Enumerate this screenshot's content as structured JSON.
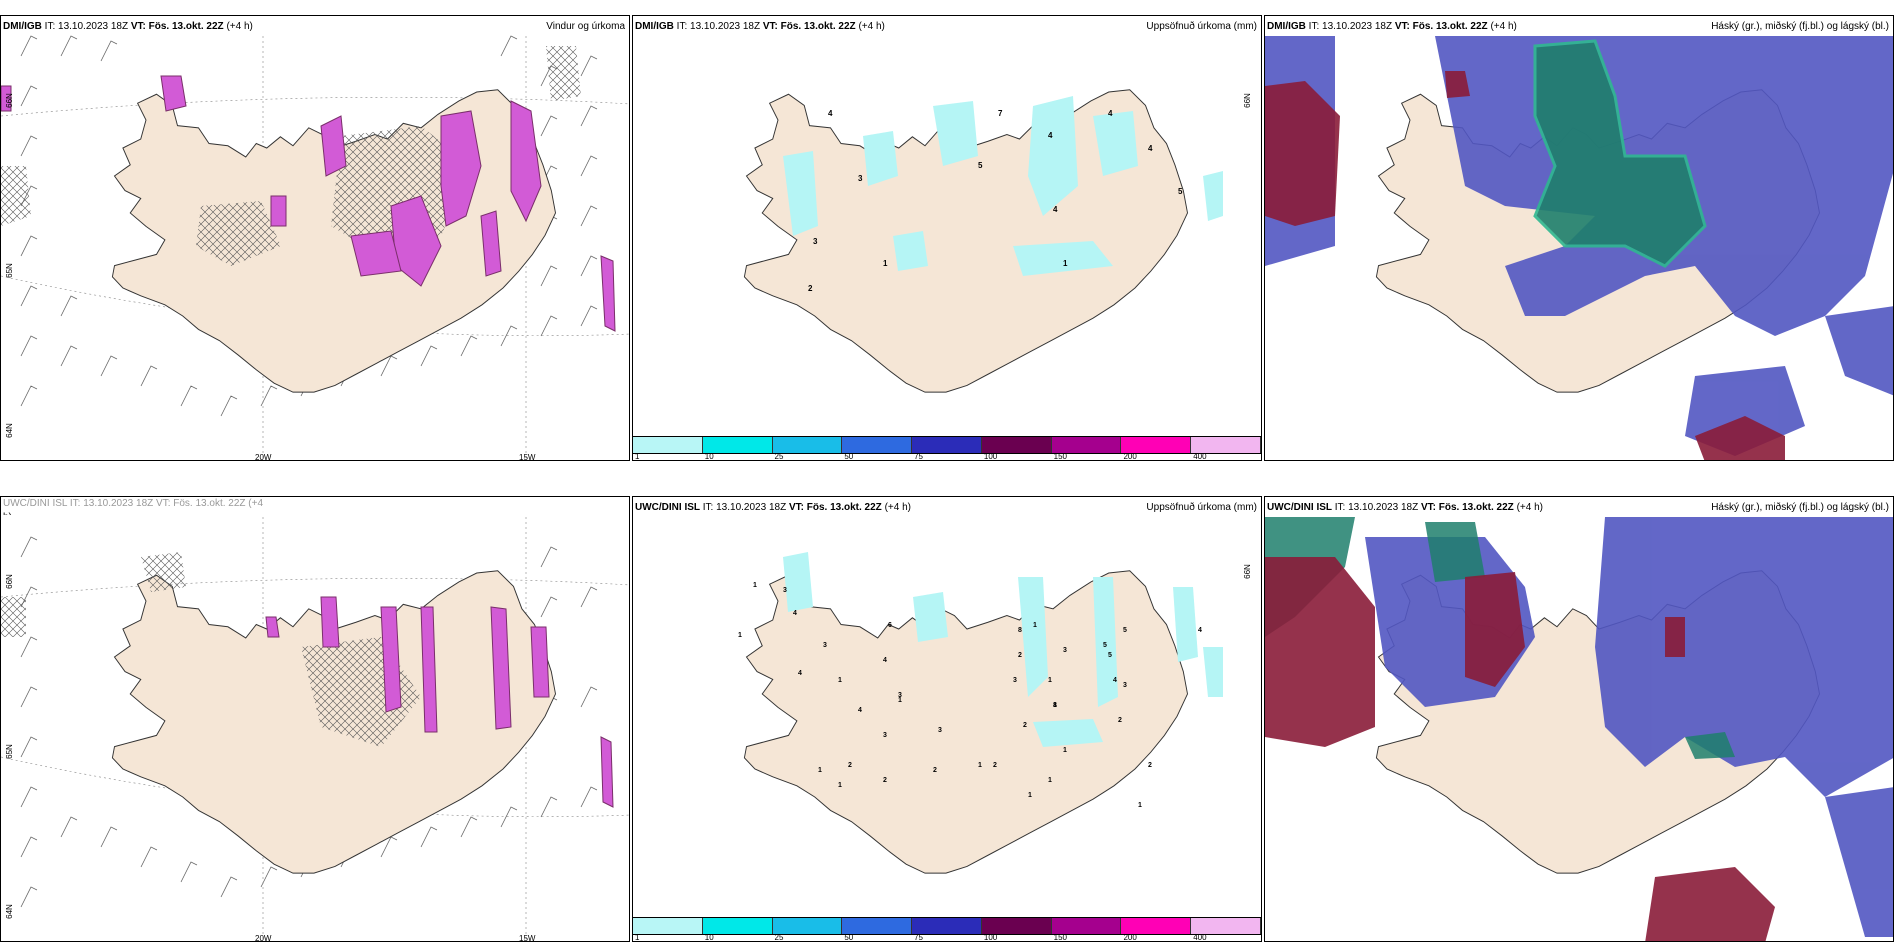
{
  "colors": {
    "land": "#f5e6d6",
    "coast": "#333333",
    "precip_light": "#b5f5f5",
    "purple_precip": "#d25bd6",
    "purple_dark": "#7a2f6a",
    "high_cloud_green": "#1f7f6c",
    "mid_cloud_blue": "#5257c2",
    "low_cloud_red": "#8a1c38"
  },
  "colorbar": {
    "swatch_colors": [
      "#b8f6f6",
      "#00e8e8",
      "#19bde8",
      "#2e6ae0",
      "#2b2cb8",
      "#6a0050",
      "#a5008e",
      "#ff00b5",
      "#f2b6f0"
    ],
    "ticks": [
      "1",
      "10",
      "25",
      "50",
      "75",
      "100",
      "150",
      "200",
      "400"
    ]
  },
  "panels": [
    {
      "id": "top-left",
      "header": {
        "source": "DMI/IGB",
        "it_label": "IT:",
        "it_value": "13.10.2023 18Z",
        "vt_label": "VT:",
        "vt_value": "Fös. 13.okt. 22Z",
        "lead": "(+4 h)",
        "right": "Vindur og úrkoma"
      },
      "axis_labels": [
        "20W",
        "15W",
        "66N",
        "64N",
        "65N"
      ]
    },
    {
      "id": "top-middle",
      "header": {
        "source": "DMI/IGB",
        "it_label": "IT:",
        "it_value": "13.10.2023 18Z",
        "vt_label": "VT:",
        "vt_value": "Fös. 13.okt. 22Z",
        "lead": "(+4 h)",
        "right": "Uppsöfnuð úrkoma (mm)"
      },
      "axis_labels": [
        "66N"
      ],
      "values": [
        "4",
        "4",
        "7",
        "4",
        "4",
        "5",
        "5",
        "4",
        "3",
        "3",
        "2",
        "1",
        "1"
      ]
    },
    {
      "id": "top-right",
      "header": {
        "source": "DMI/IGB",
        "it_label": "IT:",
        "it_value": "13.10.2023 18Z",
        "vt_label": "VT:",
        "vt_value": "Fös. 13.okt. 22Z",
        "lead": "(+4 h)",
        "right": "Háský (gr.), miðský (fj.bl.) og lágský (bl.)"
      }
    },
    {
      "id": "bottom-left",
      "header": {
        "cut_text": "UWC/DINI ISL IT: 13.10.2023 18Z VT: Fös. 13.okt. 22Z (+4",
        "cut_line2": "h)"
      },
      "axis_labels": [
        "20W",
        "15W",
        "66N",
        "64N",
        "65N"
      ]
    },
    {
      "id": "bottom-middle",
      "header": {
        "source": "UWC/DINI ISL",
        "it_label": "IT:",
        "it_value": "13.10.2023 18Z",
        "vt_label": "VT:",
        "vt_value": "Fös. 13.okt. 22Z",
        "lead": "(+4 h)",
        "right": "Uppsöfnuð úrkoma (mm)"
      },
      "axis_labels": [
        "66N"
      ],
      "values": [
        "1",
        "3",
        "4",
        "3",
        "6",
        "4",
        "1",
        "4",
        "4",
        "1",
        "3",
        "2",
        "1",
        "3",
        "1",
        "3",
        "2",
        "1",
        "8",
        "1",
        "2",
        "5",
        "5",
        "5",
        "3",
        "2",
        "4",
        "3",
        "1",
        "1",
        "2",
        "3",
        "1",
        "2",
        "2",
        "1",
        "1",
        "1",
        "8",
        "2",
        "1",
        "4"
      ]
    },
    {
      "id": "bottom-right",
      "header": {
        "source": "UWC/DINI ISL",
        "it_label": "IT:",
        "it_value": "13.10.2023 18Z",
        "vt_label": "VT:",
        "vt_value": "Fös. 13.okt. 22Z",
        "lead": "(+4 h)",
        "right": "Háský (gr.), miðský (fj.bl.) og lágský (bl.)"
      }
    }
  ]
}
